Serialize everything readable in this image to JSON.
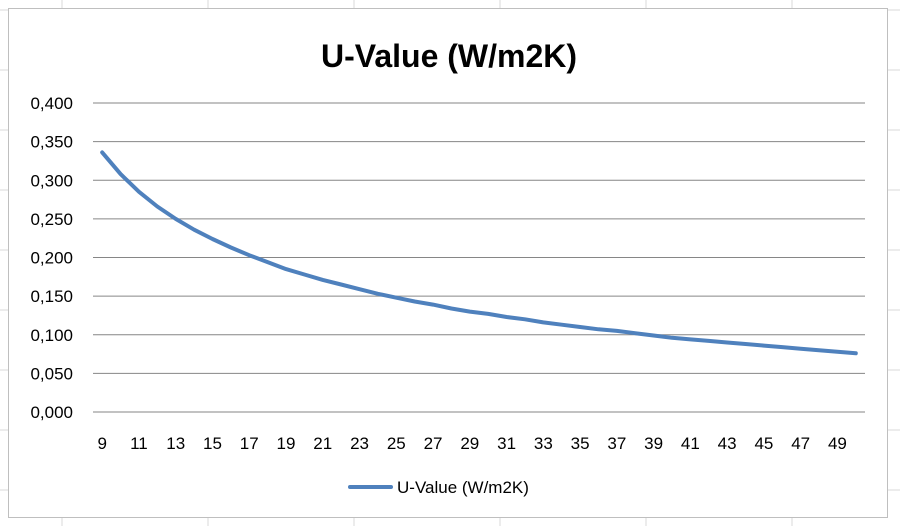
{
  "chart_data": {
    "type": "line",
    "title": "U-Value (W/m2K)",
    "xlabel": "",
    "ylabel": "",
    "x": [
      9,
      10,
      11,
      12,
      13,
      14,
      15,
      16,
      17,
      18,
      19,
      20,
      21,
      22,
      23,
      24,
      25,
      26,
      27,
      28,
      29,
      30,
      31,
      32,
      33,
      34,
      35,
      36,
      37,
      38,
      39,
      40,
      41,
      42,
      43,
      44,
      45,
      46,
      47,
      48,
      49,
      50
    ],
    "xtick_labels": [
      "9",
      "11",
      "13",
      "15",
      "17",
      "19",
      "21",
      "23",
      "25",
      "27",
      "29",
      "31",
      "33",
      "35",
      "37",
      "39",
      "41",
      "43",
      "45",
      "47",
      "49"
    ],
    "ylim": [
      0,
      0.4
    ],
    "ytick_labels": [
      "0,000",
      "0,050",
      "0,100",
      "0,150",
      "0,200",
      "0,250",
      "0,300",
      "0,350",
      "0,400"
    ],
    "grid": true,
    "legend_position": "bottom",
    "series": [
      {
        "name": "U-Value (W/m2K)",
        "color": "#4f81bd",
        "values": [
          0.336,
          0.308,
          0.285,
          0.266,
          0.25,
          0.236,
          0.224,
          0.213,
          0.203,
          0.194,
          0.185,
          0.178,
          0.171,
          0.165,
          0.159,
          0.153,
          0.148,
          0.143,
          0.139,
          0.134,
          0.13,
          0.127,
          0.123,
          0.12,
          0.116,
          0.113,
          0.11,
          0.107,
          0.105,
          0.102,
          0.099,
          0.096,
          0.094,
          0.092,
          0.09,
          0.088,
          0.086,
          0.084,
          0.082,
          0.08,
          0.078,
          0.076
        ]
      }
    ]
  }
}
